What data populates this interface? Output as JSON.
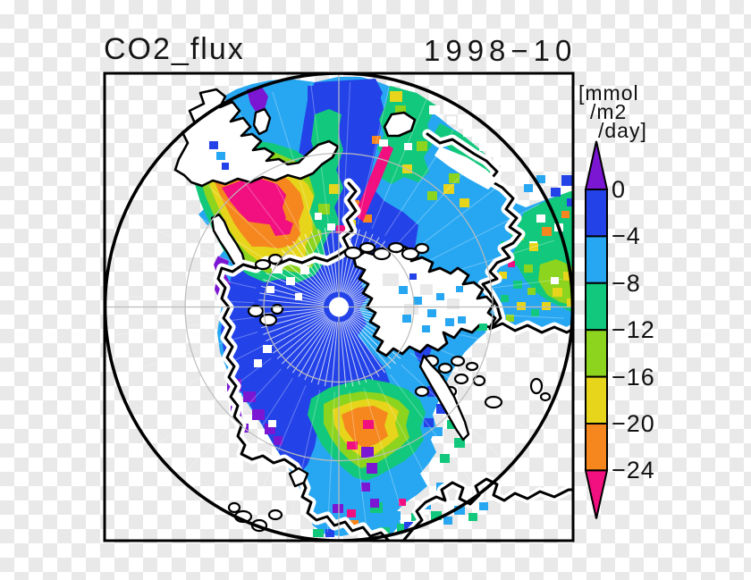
{
  "header": {
    "title_left": "CO2_flux",
    "title_right": "1998−10"
  },
  "colorbar": {
    "unit_lines": [
      "[mmol",
      "/m2",
      "/day]"
    ],
    "tick_labels": [
      "0",
      "−4",
      "−8",
      "−12",
      "−16",
      "−20",
      "−24"
    ],
    "segment_colors": [
      "#2343e9",
      "#27a7f2",
      "#12c87c",
      "#8cd41e",
      "#e6d51a",
      "#f5871e"
    ],
    "over_arrow_color": "#7b16d3",
    "under_arrow_color": "#f20f80"
  },
  "palette": {
    "positive_purple": "#7b16d3",
    "blue_0_-4": "#2343e9",
    "cyan_-4_-8": "#27a7f2",
    "green_-8_-12": "#12c87c",
    "yellowgreen_-12_-16": "#8cd41e",
    "yellow_-16_-20": "#e6d51a",
    "orange_-20_-24": "#f5871e",
    "magenta_below_-24": "#f20f80",
    "land": "#ffffff",
    "graticule": "#bcbcbc",
    "outline": "#000000"
  },
  "chart_data": {
    "type": "heatmap",
    "title": "CO2_flux",
    "time_label": "1998−10",
    "units_label": "[mmol /m2 /day]",
    "projection": "north polar stereographic map, circle boundary tangent to square frame, pole marked by white dot",
    "colorbar": {
      "orientation": "vertical, right side",
      "tick_values": [
        0,
        -4,
        -8,
        -12,
        -16,
        -20,
        -24
      ],
      "segment_colors": [
        "#2343e9",
        "#27a7f2",
        "#12c87c",
        "#8cd41e",
        "#e6d51a",
        "#f5871e"
      ],
      "over_arrow_color": "#7b16d3",
      "under_arrow_color": "#f20f80"
    },
    "regions": [
      {
        "name": "central Arctic Ocean (around pole)",
        "value_mmol_m2_day": "0 to -4 (blue)"
      },
      {
        "name": "upper-left marginal sea bloom (Bering/Chukchi side)",
        "value_mmol_m2_day": "-16 to below -24 (yellow/orange/magenta core ringed by green)"
      },
      {
        "name": "top-center shelf seas",
        "value_mmol_m2_day": "-4 to -16 mosaic with magenta streak below -24"
      },
      {
        "name": "right-edge shelf band",
        "value_mmol_m2_day": "-8 to -20 (green/yellow-green/yellow, few orange cells)"
      },
      {
        "name": "bottom-center open-ocean bloom",
        "value_mmol_m2_day": "-12 to -24 (orange core, small magenta cells)"
      },
      {
        "name": "coastal lead patches (purple)",
        "value_mmol_m2_day": "above 0 (outgassing)"
      },
      {
        "name": "land",
        "value_mmol_m2_day": "no data (white/transparent with black coastlines)"
      }
    ]
  }
}
